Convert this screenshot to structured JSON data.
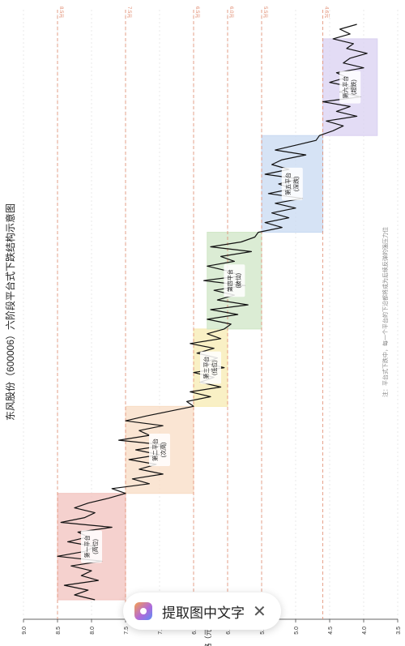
{
  "chart_data": {
    "type": "line",
    "title": "东风股份（600006）六阶段平台式下跌结构示意图",
    "ylabel": "价格（元）",
    "ylim": [
      3.5,
      9.0
    ],
    "yticks": [
      "3.5",
      "4.0",
      "4.5",
      "5.0",
      "5.5",
      "6.0",
      "6.5",
      "7.0",
      "7.5",
      "8.0",
      "8.5",
      "9.0"
    ],
    "grid": true,
    "reference_lines": [
      {
        "value": 8.5,
        "label": "8.5元"
      },
      {
        "value": 7.5,
        "label": "7.5元"
      },
      {
        "value": 6.5,
        "label": "6.5元"
      },
      {
        "value": 6.0,
        "label": "6.0元"
      },
      {
        "value": 5.5,
        "label": "5.5元"
      },
      {
        "value": 4.6,
        "label": "4.6元"
      }
    ],
    "platforms": [
      {
        "name": "第一平台",
        "sub": "(高位)",
        "low": 7.5,
        "high": 8.5,
        "start": 0,
        "end": 22,
        "color": "#f2c2bd"
      },
      {
        "name": "第二平台",
        "sub": "(次高)",
        "low": 6.5,
        "high": 7.5,
        "start": 22,
        "end": 40,
        "color": "#f8dcc4"
      },
      {
        "name": "第三平台",
        "sub": "(低位)",
        "low": 6.0,
        "high": 6.5,
        "start": 40,
        "end": 56,
        "color": "#f7ebb2"
      },
      {
        "name": "第四平台",
        "sub": "(破位)",
        "low": 5.5,
        "high": 6.3,
        "start": 56,
        "end": 76,
        "color": "#cfe6c6"
      },
      {
        "name": "第五平台",
        "sub": "(深跌)",
        "low": 4.6,
        "high": 5.5,
        "start": 76,
        "end": 96,
        "color": "#c8d9f2"
      },
      {
        "name": "第六平台",
        "sub": "(超跌)",
        "low": 3.8,
        "high": 4.6,
        "start": 96,
        "end": 116,
        "color": "#d9d0f1"
      }
    ],
    "series": [
      {
        "values": [
          7.95,
          8.25,
          8.05,
          8.4,
          7.9,
          8.15,
          8.0,
          8.3,
          7.85,
          8.5,
          8.1,
          7.95,
          8.35,
          8.05,
          8.2,
          7.7,
          8.45,
          8.1,
          7.95,
          8.25,
          8.05,
          7.75,
          7.5,
          7.7,
          7.15,
          7.4,
          6.95,
          7.3,
          7.05,
          7.45,
          7.0,
          7.35,
          6.9,
          7.6,
          7.15,
          7.3,
          6.95,
          7.5,
          7.2,
          6.85,
          6.5,
          6.6,
          6.25,
          6.55,
          6.1,
          6.4,
          6.2,
          6.5,
          6.05,
          6.35,
          6.15,
          6.45,
          6.2,
          6.55,
          6.1,
          6.3,
          6.05,
          5.95,
          6.3,
          5.85,
          6.25,
          5.7,
          6.15,
          5.9,
          6.2,
          5.75,
          6.35,
          5.8,
          6.0,
          6.3,
          5.9,
          6.1,
          5.65,
          6.25,
          5.8,
          5.6,
          5.55,
          5.2,
          5.45,
          5.1,
          5.35,
          5.0,
          5.3,
          4.9,
          5.4,
          5.05,
          5.25,
          4.95,
          5.45,
          5.1,
          5.35,
          5.2,
          4.85,
          5.3,
          5.0,
          4.7,
          4.65,
          4.45,
          4.3,
          4.55,
          4.1,
          4.4,
          4.2,
          4.6,
          4.05,
          4.35,
          4.15,
          4.5,
          4.25,
          4.4,
          4.0,
          4.3,
          4.2,
          3.95,
          4.25,
          4.15,
          4.45,
          4.2,
          4.35,
          4.1
        ]
      }
    ],
    "note": "注：平台式下跌中，每一个平台的下沿都将成为后续反弹的强压力位"
  },
  "overlay": {
    "label": "提取图中文字",
    "icon": "scan-text-icon",
    "close_icon": "close-icon",
    "close_glyph": "✕"
  }
}
